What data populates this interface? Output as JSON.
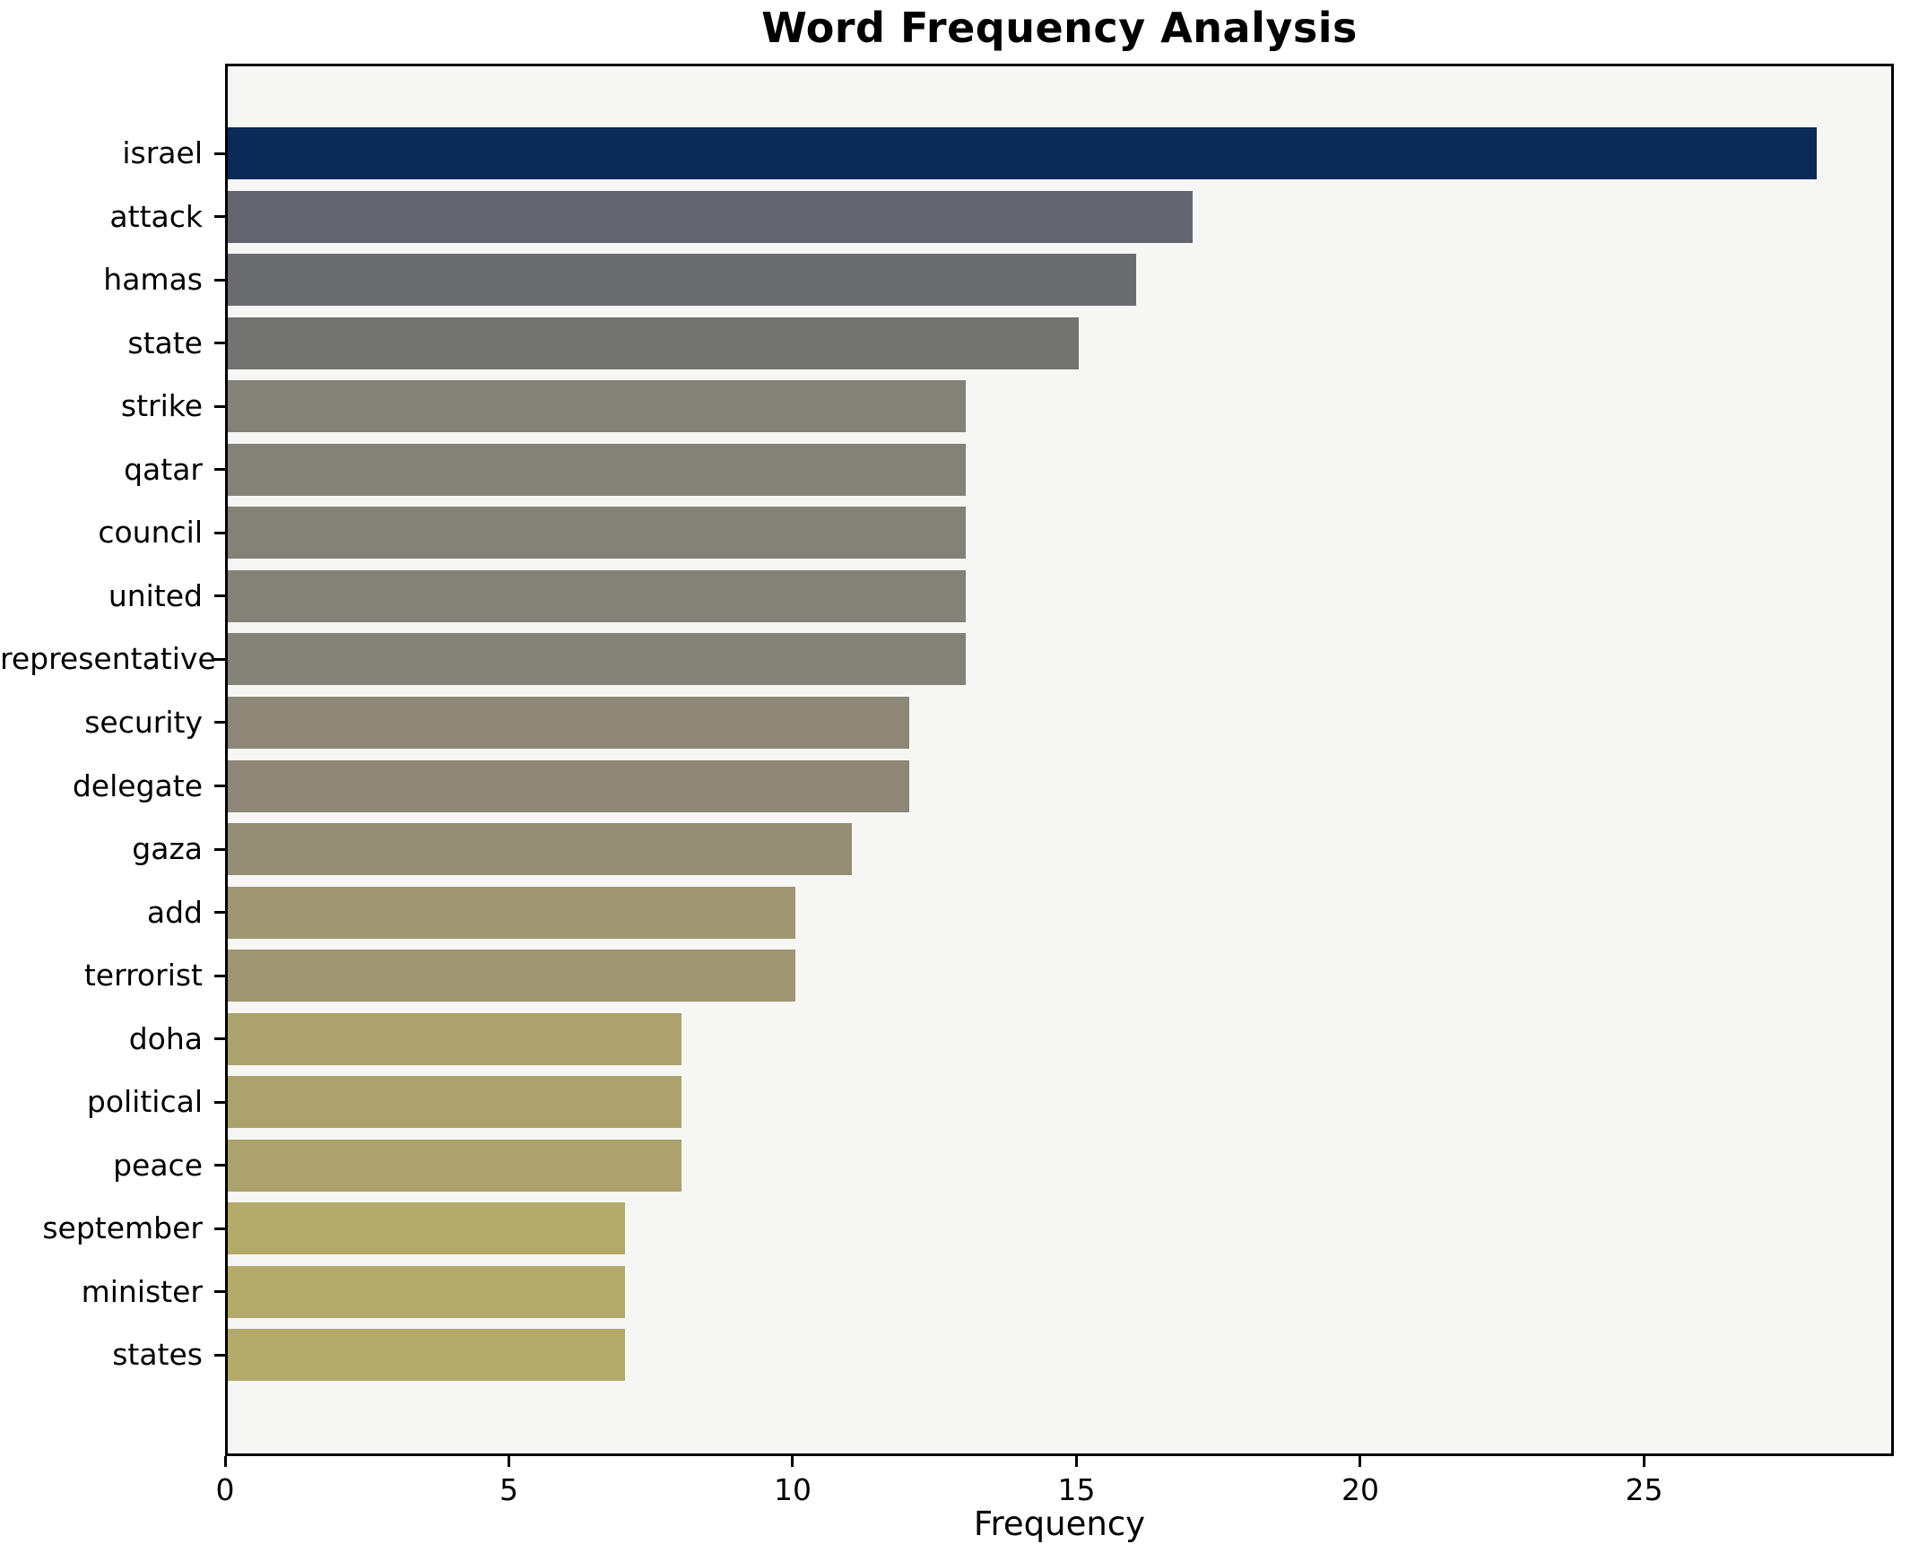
{
  "chart_data": {
    "type": "bar",
    "orientation": "horizontal",
    "title": "Word Frequency Analysis",
    "xlabel": "Frequency",
    "ylabel": "",
    "categories": [
      "israel",
      "attack",
      "hamas",
      "state",
      "strike",
      "qatar",
      "council",
      "united",
      "representative",
      "security",
      "delegate",
      "gaza",
      "add",
      "terrorist",
      "doha",
      "political",
      "peace",
      "september",
      "minister",
      "states"
    ],
    "values": [
      28,
      17,
      16,
      15,
      13,
      13,
      13,
      13,
      13,
      12,
      12,
      11,
      10,
      10,
      8,
      8,
      8,
      7,
      7,
      7
    ],
    "bar_colors": [
      "#0c2a57",
      "#63666f",
      "#6a6c70",
      "#737471",
      "#848177",
      "#848177",
      "#848177",
      "#848177",
      "#848177",
      "#8d8777",
      "#8d8777",
      "#958e75",
      "#9e9672",
      "#9e9672",
      "#aca26d",
      "#aca26d",
      "#aca26d",
      "#b3a96a",
      "#b3a96a",
      "#b3a96a"
    ],
    "xticks": [
      0,
      5,
      10,
      15,
      20,
      25
    ],
    "xlim": [
      0,
      29.4
    ],
    "grid": false,
    "legend": null,
    "plot_background": "#f6f6f4",
    "figure_background": "#ffffff",
    "axis_color": "#000000"
  }
}
